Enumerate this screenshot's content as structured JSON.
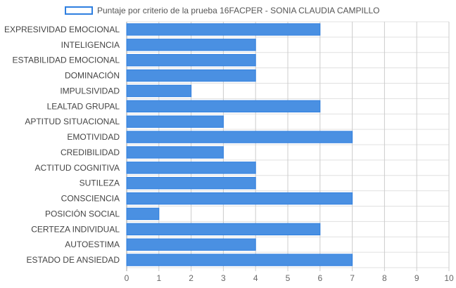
{
  "chart_data": {
    "type": "bar",
    "orientation": "horizontal",
    "categories": [
      "EXPRESIVIDAD EMOCIONAL",
      "INTELIGENCIA",
      "ESTABILIDAD EMOCIONAL",
      "DOMINACIÓN",
      "IMPULSIVIDAD",
      "LEALTAD GRUPAL",
      "APTITUD SITUACIONAL",
      "EMOTIVIDAD",
      "CREDIBILIDAD",
      "ACTITUD COGNITIVA",
      "SUTILEZA",
      "CONSCIENCIA",
      "POSICIÓN SOCIAL",
      "CERTEZA INDIVIDUAL",
      "AUTOESTIMA",
      "ESTADO DE ANSIEDAD"
    ],
    "series": [
      {
        "name": "Puntaje por criterio de la prueba 16FACPER - SONIA CLAUDIA CAMPILLO",
        "values": [
          6,
          4,
          4,
          4,
          2,
          6,
          3,
          7,
          3,
          4,
          4,
          7,
          1,
          6,
          4,
          7
        ],
        "color": "#4a90e2",
        "border_color": "#2f7fe0"
      }
    ],
    "xlim": [
      0,
      10
    ],
    "xticks": [
      "0",
      "1",
      "2",
      "3",
      "4",
      "5",
      "6",
      "7",
      "8",
      "9",
      "10"
    ],
    "grid": true,
    "legend_position": "top-left"
  }
}
